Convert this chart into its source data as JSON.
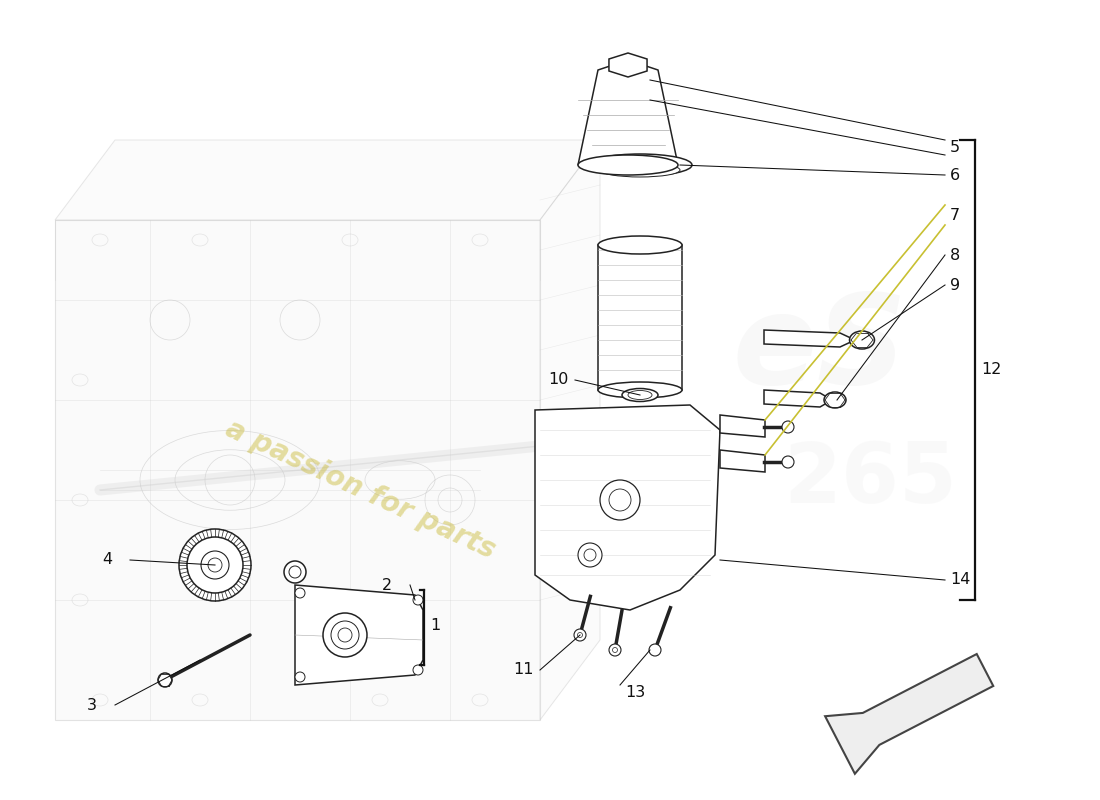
{
  "background_color": "#ffffff",
  "fig_width": 11.0,
  "fig_height": 8.0,
  "dpi": 100,
  "watermark_text": "a passion for parts",
  "watermark_color": "#c8b832",
  "watermark_alpha": 0.45,
  "callout_color": "#111111",
  "line_color": "#222222",
  "part_line_color": "#222222",
  "part_fill": "#ffffff",
  "engine_fill": "#f4f4f4",
  "engine_edge": "#cccccc",
  "engine_alpha": 0.55,
  "yellow_line_color": "#c8c032",
  "arrow_fill": "#e8e8e8",
  "arrow_edge": "#555555",
  "callout_fontsize": 11.5,
  "part_linewidth": 1.1,
  "callout_linewidth": 0.75,
  "bracket_linewidth": 1.6
}
